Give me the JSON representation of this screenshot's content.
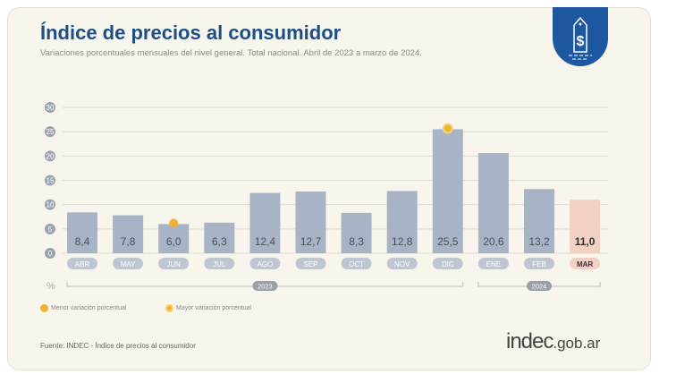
{
  "title": "Índice de precios al consumidor",
  "subtitle": "Variaciones porcentuales mensuales del nivel general. Total nacional. Abril de 2023 a marzo de 2024.",
  "legend": {
    "min": "Menor variación porcentual",
    "max": "Mayor variación porcentual"
  },
  "source": "Fuente: INDEC - Índice de precios al consumidor",
  "logo": {
    "main": "indec",
    "suffix": ".gob.ar"
  },
  "badge_icon": "price-tag-dollar-icon",
  "colors": {
    "bar": "#a8b3c5",
    "highlight": "#f2d0c3",
    "marker": "#f0b234",
    "title": "#1d4e86"
  },
  "chart_data": {
    "type": "bar",
    "categories": [
      "ABR",
      "MAY",
      "JUN",
      "JUL",
      "AGO",
      "SEP",
      "OCT",
      "NOV",
      "DIC",
      "ENE",
      "FEB",
      "MAR"
    ],
    "values": [
      8.4,
      7.8,
      6.0,
      6.3,
      12.4,
      12.7,
      8.3,
      12.8,
      25.5,
      20.6,
      13.2,
      11.0
    ],
    "labels": [
      "8,4",
      "7,8",
      "6,0",
      "6,3",
      "12,4",
      "12,7",
      "8,3",
      "12,8",
      "25,5",
      "20,6",
      "13,2",
      "11,0"
    ],
    "ylim": [
      0,
      30
    ],
    "yticks": [
      0,
      5,
      10,
      15,
      20,
      25,
      30
    ],
    "ylabel": "%",
    "years": [
      {
        "label": "2023",
        "from": 0,
        "to": 8
      },
      {
        "label": "2024",
        "from": 9,
        "to": 11
      }
    ],
    "min_index": 2,
    "max_index": 8,
    "highlight_index": 11,
    "grid": true
  }
}
